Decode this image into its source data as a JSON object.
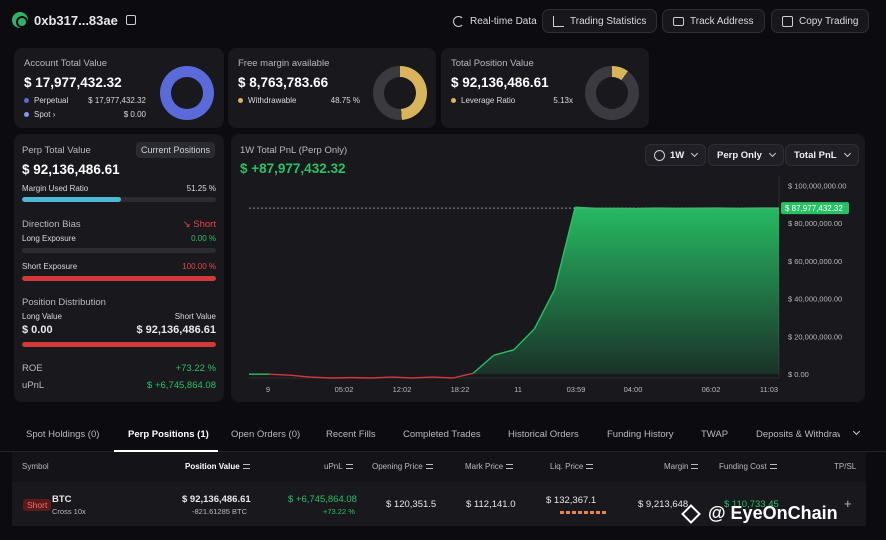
{
  "header": {
    "address": "0xb317...83ae",
    "buttons": {
      "realtime": "Real-time Data",
      "stats": "Trading Statistics",
      "track": "Track Address",
      "copy": "Copy Trading"
    }
  },
  "account": {
    "label": "Account Total Value",
    "value": "$ 17,977,432.32",
    "perp_label": "Perpetual",
    "perp_value": "$ 17,977,432.32",
    "spot_label": "Spot",
    "spot_value": "$ 0.00",
    "perp_fraction": 1.0,
    "colors": {
      "perp": "#5a6ad8",
      "spot": "#8a94e8"
    }
  },
  "margin": {
    "label": "Free margin available",
    "value": "$ 8,763,783.66",
    "withdrawable_label": "Withdrawable",
    "withdrawable_value": "48.75 %",
    "fraction": 0.4875,
    "color": "#d9b45a"
  },
  "position": {
    "label": "Total Position Value",
    "value": "$ 92,136,486.61",
    "leverage_label": "Leverage Ratio",
    "leverage_value": "5.13x",
    "fraction": 0.1,
    "color": "#d9b45a"
  },
  "perp": {
    "label": "Perp Total Value",
    "current_btn": "Current Positions",
    "value": "$ 92,136,486.61",
    "margin_used_label": "Margin Used Ratio",
    "margin_used_value": "51.25 %",
    "margin_used_fraction": 0.5125,
    "direction_label": "Direction Bias",
    "direction_value": "Short",
    "long_exp_label": "Long Exposure",
    "long_exp_value": "0.00 %",
    "long_exp_fraction": 0.0,
    "short_exp_label": "Short Exposure",
    "short_exp_value": "100.00 %",
    "short_exp_fraction": 1.0,
    "dist_label": "Position Distribution",
    "long_value_label": "Long Value",
    "short_value_label": "Short Value",
    "long_value": "$ 0.00",
    "short_value": "$ 92,136,486.61",
    "roe_label": "ROE",
    "roe_value": "+73.22 %",
    "upnl_label": "uPnL",
    "upnl_value": "$ +6,745,864.08"
  },
  "pnl": {
    "title": "1W Total PnL (Perp Only)",
    "value": "$ +87,977,432.32",
    "sel_period": "1W",
    "sel_scope": "Perp Only",
    "sel_metric": "Total PnL",
    "current_label": "$ 87,977,432.32"
  },
  "chart_data": {
    "type": "area",
    "x": [
      0,
      1,
      2,
      3,
      4,
      5,
      6,
      7,
      8,
      9,
      10,
      11,
      12,
      13,
      14,
      15,
      16,
      17,
      18,
      19,
      20,
      21,
      22,
      23,
      24,
      25,
      26
    ],
    "values": [
      0,
      0,
      -500000,
      -1500000,
      -2000000,
      -1800000,
      -2000000,
      -1500000,
      -2000000,
      -1500000,
      -2000000,
      500000,
      10000000,
      13000000,
      24000000,
      45000000,
      88500000,
      87900000,
      87900000,
      87800000,
      88000000,
      87900000,
      87950000,
      88000000,
      87900000,
      88000000,
      87977432
    ],
    "x_tick_labels": [
      "9",
      "05:02",
      "12:02",
      "18:22",
      "11",
      "03:59",
      "04:00",
      "06:02",
      "11:03"
    ],
    "y_tick_labels": [
      "$ 100,000,000.00",
      "$ 80,000,000.00",
      "$ 60,000,000.00",
      "$ 40,000,000.00",
      "$ 20,000,000.00",
      "$ 0.00"
    ],
    "y_ticks": [
      100000000,
      80000000,
      60000000,
      40000000,
      20000000,
      0
    ],
    "ylim": [
      -2000000,
      105000000
    ],
    "reference_line": 87977432.32,
    "colors": {
      "positive": "#27c266",
      "negative": "#d23a3a"
    }
  },
  "tabs": [
    "Spot Holdings (0)",
    "Perp Positions (1)",
    "Open Orders (0)",
    "Recent Fills",
    "Completed Trades",
    "Historical Orders",
    "Funding History",
    "TWAP",
    "Deposits & Withdraw"
  ],
  "table": {
    "headers": [
      "Symbol",
      "Position Value",
      "uPnL",
      "Opening Price",
      "Mark Price",
      "Liq. Price",
      "Margin",
      "Funding Cost",
      "TP/SL"
    ],
    "row": {
      "side": "Short",
      "symbol": "BTC",
      "mode": "Cross 10x",
      "position_value": "$ 92,136,486.61",
      "position_size": "-821.61285 BTC",
      "upnl": "$ +6,745,864.08",
      "upnl_pct": "+73.22 %",
      "open_price": "$ 120,351.5",
      "mark_price": "$ 112,141.0",
      "liq_price": "$ 132,367.1",
      "margin": "$ 9,213,648",
      "funding": "$ 110,733.45",
      "tpsl": "+"
    }
  },
  "watermark": "@ EyeOnChain"
}
